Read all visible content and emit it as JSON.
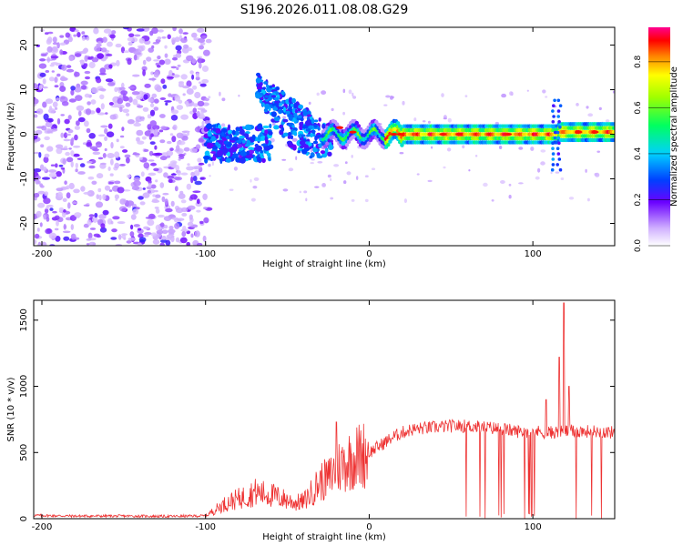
{
  "title": "S196.2026.011.08.08.G29",
  "spectrogram": {
    "xlabel": "Height of straight line (km)",
    "ylabel": "Frequency (Hz)",
    "xlim": [
      -205,
      150
    ],
    "ylim": [
      -25,
      24
    ],
    "xticks": [
      -200,
      -100,
      0,
      100
    ],
    "yticks": [
      -20,
      -10,
      0,
      10,
      20
    ],
    "colorbar": {
      "label": "Normalized spectral amplitude",
      "ticks": [
        0.0,
        0.2,
        0.4,
        0.6,
        0.8
      ],
      "range": [
        0,
        0.95
      ]
    }
  },
  "chart_data": [
    {
      "type": "heatmap",
      "title": "S196.2026.011.08.08.G29",
      "xlabel": "Height of straight line (km)",
      "ylabel": "Frequency (Hz)",
      "xlim": [
        -205,
        150
      ],
      "ylim": [
        -25,
        24
      ],
      "description_points": [
        {
          "x": -150,
          "y": 0,
          "value": 0.15
        },
        {
          "x": -95,
          "y": -1,
          "value": 0.3
        },
        {
          "x": -60,
          "y": 8,
          "value": 0.2
        },
        {
          "x": -40,
          "y": -4,
          "value": 0.3
        },
        {
          "x": -20,
          "y": 1,
          "value": 0.5
        },
        {
          "x": 15,
          "y": 0,
          "value": 0.95
        },
        {
          "x": 50,
          "y": 0,
          "value": 0.9
        },
        {
          "x": 100,
          "y": 0,
          "value": 0.8
        },
        {
          "x": 130,
          "y": 0.5,
          "value": 0.85
        }
      ]
    },
    {
      "type": "line",
      "xlabel": "Height of straight line (km)",
      "ylabel": "SNR (10 * v/v)",
      "xlim": [
        -205,
        150
      ],
      "ylim": [
        0,
        1650
      ],
      "xticks": [
        -200,
        -100,
        0,
        100
      ],
      "yticks": [
        0,
        500,
        1000,
        1500
      ],
      "series": [
        {
          "name": "SNR",
          "color": "#ee3333",
          "x": [
            -205,
            -180,
            -150,
            -120,
            -100,
            -95,
            -90,
            -85,
            -80,
            -75,
            -70,
            -65,
            -60,
            -55,
            -50,
            -45,
            -40,
            -35,
            -30,
            -25,
            -20,
            -15,
            -10,
            -5,
            0,
            5,
            10,
            15,
            20,
            25,
            30,
            40,
            50,
            60,
            70,
            80,
            90,
            100,
            110,
            120,
            130,
            140,
            150
          ],
          "values": [
            25,
            20,
            20,
            18,
            22,
            60,
            100,
            130,
            150,
            170,
            200,
            190,
            180,
            160,
            140,
            120,
            130,
            200,
            280,
            300,
            380,
            420,
            460,
            480,
            500,
            540,
            580,
            620,
            650,
            670,
            680,
            690,
            700,
            700,
            690,
            680,
            660,
            660,
            650,
            660,
            660,
            660,
            650
          ]
        }
      ],
      "spikes": [
        {
          "x": -20,
          "value": 730
        },
        {
          "x": 108,
          "value": 900
        },
        {
          "x": 116,
          "value": 1220
        },
        {
          "x": 119,
          "value": 1630
        },
        {
          "x": 122,
          "value": 1000
        }
      ],
      "dropouts_start": 57
    }
  ],
  "snr_panel": {
    "xlabel": "Height of straight line (km)",
    "ylabel": "SNR (10 * v/v)"
  }
}
